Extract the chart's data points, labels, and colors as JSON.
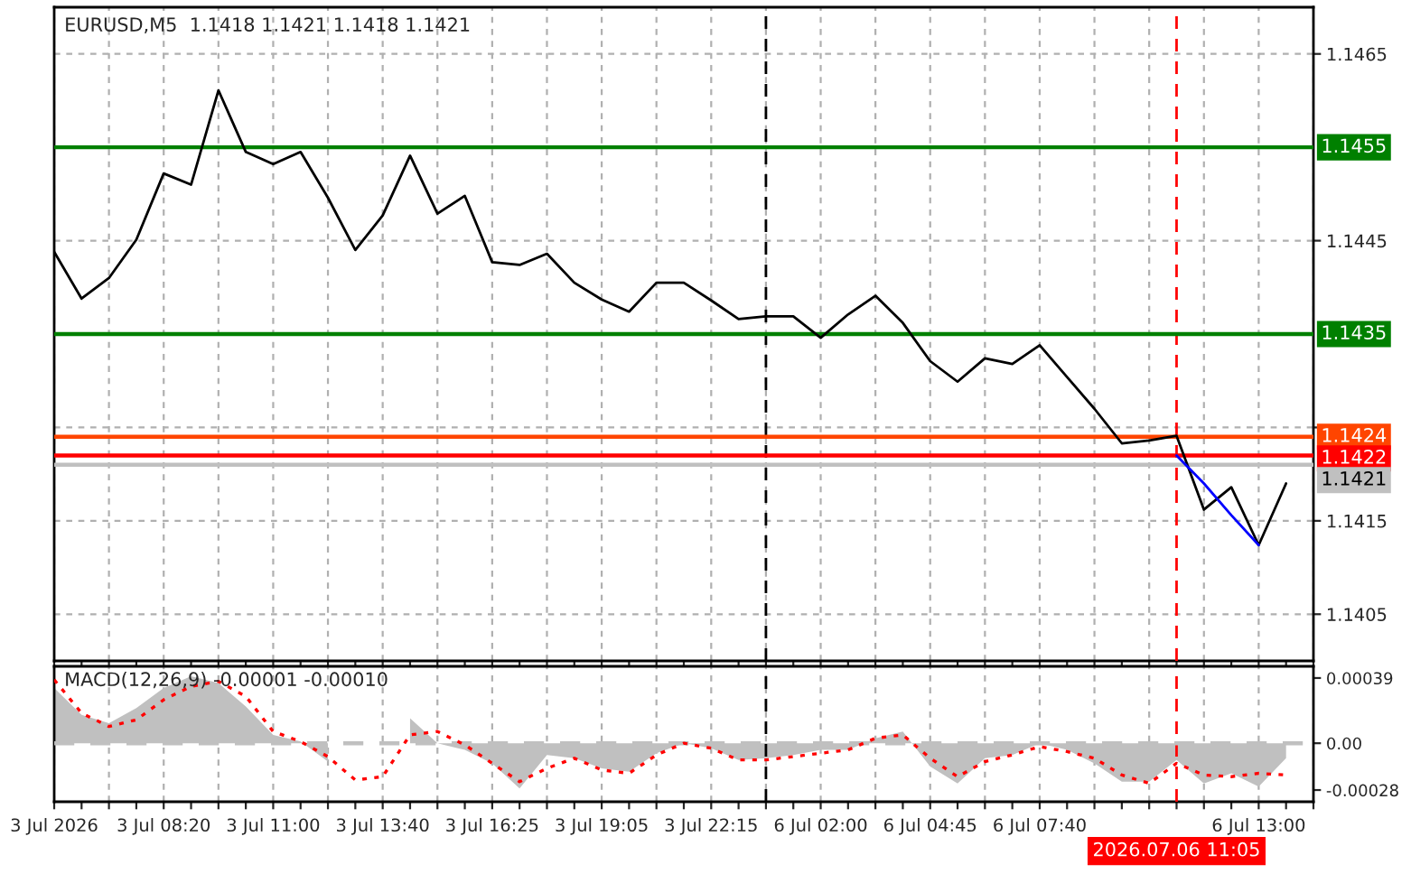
{
  "chart_data": [
    {
      "type": "line",
      "title": "EURUSD,M5  1.1418 1.1421 1.1418 1.1421",
      "grid": true,
      "legend": false,
      "tick_labels": "y",
      "categories": [
        null,
        null,
        null,
        null,
        null,
        null,
        null,
        null,
        null,
        null,
        null,
        null,
        null,
        null,
        null,
        null,
        null,
        null,
        null,
        null,
        null,
        null,
        null,
        null,
        null,
        null,
        null,
        null,
        null,
        null,
        null,
        null,
        null,
        null,
        null,
        null,
        null,
        null,
        null,
        null,
        null,
        null,
        null,
        null,
        null,
        null,
        null
      ],
      "ylim": [
        1.14,
        1.147
      ],
      "yticks": [
        1.1405,
        1.1415,
        {
          "value": 1.1425,
          "label": null
        },
        1.1445,
        1.1465
      ],
      "series": [
        {
          "color": "#000000",
          "values": [
            1.14438,
            1.14388,
            1.1441,
            1.14451,
            1.14522,
            1.1451,
            1.14611,
            1.14545,
            1.14532,
            1.14545,
            1.14496,
            1.1444,
            1.14477,
            1.14541,
            1.14479,
            1.14498,
            1.14427,
            1.14424,
            1.14436,
            1.14405,
            1.14387,
            1.14374,
            1.14405,
            1.14405,
            1.14386,
            1.14366,
            1.14369,
            1.14369,
            1.14346,
            1.14371,
            1.14391,
            1.14362,
            1.14321,
            1.14299,
            1.14324,
            1.14318,
            1.14338,
            1.14304,
            1.1427,
            1.14233,
            1.14236,
            1.14241,
            1.14162,
            1.14186,
            1.14124,
            1.1419,
            null
          ]
        },
        {
          "type": "line",
          "color": "#0000ff",
          "values": [
            null,
            null,
            null,
            null,
            null,
            null,
            null,
            null,
            null,
            null,
            null,
            null,
            null,
            null,
            null,
            null,
            null,
            null,
            null,
            null,
            null,
            null,
            null,
            null,
            null,
            null,
            null,
            null,
            null,
            null,
            null,
            null,
            null,
            null,
            null,
            null,
            null,
            null,
            null,
            null,
            null,
            1.1422,
            1.1419,
            1.14156,
            1.14124,
            null,
            null
          ]
        }
      ],
      "ref_lines": [
        {
          "axis": "y",
          "value": 1.1455,
          "label": "1.1455",
          "color": "#008000"
        },
        {
          "axis": "y",
          "value": 1.1435,
          "label": "1.1435",
          "color": "#008000"
        },
        {
          "axis": "y",
          "value": 1.1424,
          "label": "1.1424",
          "color": "#ff4500"
        },
        {
          "axis": "y",
          "value": 1.1422,
          "label": "1.1422",
          "color": "#ff0000"
        },
        {
          "axis": "y",
          "value": 1.1421,
          "label": "1.1421",
          "color": "#c0c0c0"
        }
      ]
    },
    {
      "type": "area",
      "title": "MACD(12,26,9) -0.00001 -0.00010",
      "grid": "x",
      "legend": false,
      "categories": [
        "3 Jul 2026",
        null,
        null,
        null,
        "3 Jul 08:20",
        null,
        null,
        null,
        "3 Jul 11:00",
        null,
        null,
        null,
        "3 Jul 13:40",
        null,
        null,
        null,
        "3 Jul 16:25",
        null,
        null,
        null,
        "3 Jul 19:05",
        null,
        null,
        null,
        "3 Jul 22:15",
        null,
        null,
        null,
        "6 Jul 02:00",
        null,
        null,
        null,
        "6 Jul 04:45",
        null,
        null,
        null,
        "6 Jul 07:40",
        null,
        null,
        null,
        null,
        null,
        null,
        null,
        "6 Jul 13:00",
        null,
        null
      ],
      "ylim": [
        -0.00035,
        0.00046
      ],
      "yticks": [
        {
          "value": 0.00039,
          "label": "0.00039"
        },
        {
          "value": 0,
          "label": "0.00"
        },
        {
          "value": -0.00028,
          "label": "-0.00028"
        }
      ],
      "series": [
        {
          "color": "#c0c0c0",
          "values": [
            0.00033,
            0.00017,
            0.00012,
            0.00021,
            0.00033,
            0.0004,
            0.00036,
            0.00022,
            5e-05,
            1e-05,
            -0.00011,
            null,
            null,
            0.00015,
            0.0,
            -4e-05,
            -0.00012,
            -0.00027,
            -7e-05,
            -9e-05,
            -0.00015,
            -0.00017,
            -6e-05,
            0.0,
            -3e-05,
            -0.0001,
            -9e-05,
            -7e-05,
            -4e-05,
            -4e-05,
            3e-05,
            7e-05,
            -0.00014,
            -0.00024,
            -9e-05,
            -7e-05,
            0.0,
            -4e-05,
            -0.00012,
            -0.00023,
            -0.00023,
            -0.0001,
            -0.00024,
            -0.00018,
            -0.00026,
            -9e-05,
            null
          ]
        },
        {
          "type": "line",
          "color": "#ff0000",
          "line_style": "dotted",
          "values": [
            0.00038,
            0.00018,
            0.0001,
            0.00014,
            0.00026,
            0.00034,
            0.00037,
            0.00028,
            7e-05,
            1e-05,
            -8e-05,
            -0.00022,
            -0.0002,
            5e-05,
            7e-05,
            -1e-05,
            -0.00012,
            -0.00023,
            -0.00015,
            -9e-05,
            -0.00016,
            -0.00018,
            -7e-05,
            0.0,
            -3e-05,
            -0.0001,
            -0.0001,
            -8e-05,
            -6e-05,
            -4e-05,
            3e-05,
            5e-05,
            -9e-05,
            -0.0002,
            -0.00011,
            -7e-05,
            -2e-05,
            -5e-05,
            -9e-05,
            -0.00019,
            -0.00024,
            -0.00012,
            -0.00019,
            -0.0002,
            -0.00018,
            -0.00019,
            null
          ]
        }
      ],
      "ref_lines": [
        {
          "axis": "y",
          "value": 0,
          "color": "#c0c0c0",
          "line_style": "dashed"
        }
      ],
      "annotations": [
        "2026.07.06 11:05"
      ]
    }
  ]
}
